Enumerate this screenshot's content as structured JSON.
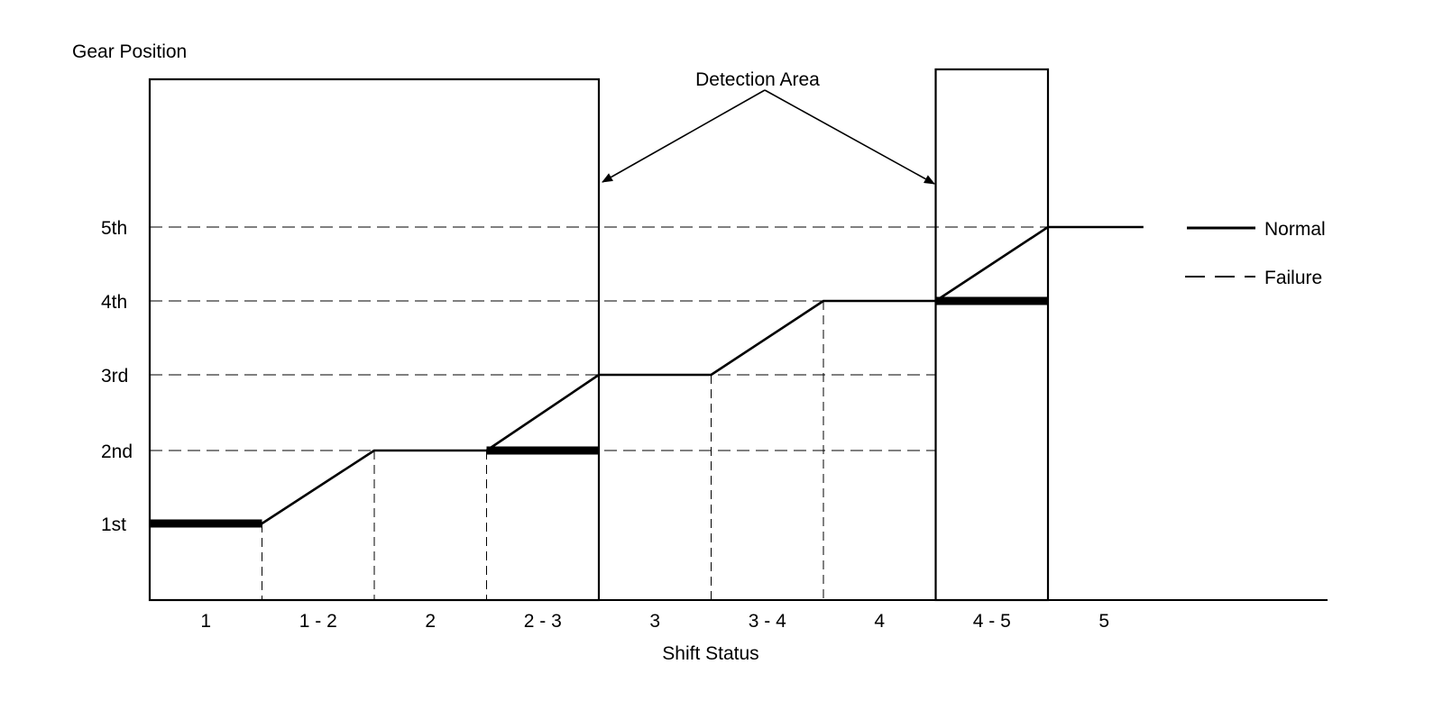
{
  "y_axis_title": "Gear Position",
  "x_axis_title": "Shift Status",
  "annotation": "Detection Area",
  "gears": [
    "1st",
    "2nd",
    "3rd",
    "4th",
    "5th"
  ],
  "shift_states": [
    "1",
    "1 - 2",
    "2",
    "2 - 3",
    "3",
    "3 - 4",
    "4",
    "4 - 5",
    "5"
  ],
  "legend": {
    "normal": "Normal",
    "failure": "Failure"
  },
  "chart_data": {
    "type": "line",
    "title": "",
    "xlabel": "Shift Status",
    "ylabel": "Gear Position",
    "categories": [
      "1",
      "1 - 2",
      "2",
      "2 - 3",
      "3",
      "3 - 4",
      "4",
      "4 - 5",
      "5"
    ],
    "y_ticks": [
      "1st",
      "2nd",
      "3rd",
      "4th",
      "5th"
    ],
    "series": [
      {
        "name": "Normal",
        "style": "solid",
        "points": [
          [
            0,
            1
          ],
          [
            1,
            1
          ],
          [
            2,
            2
          ],
          [
            3,
            2
          ],
          [
            4,
            3
          ],
          [
            5,
            3
          ],
          [
            6,
            4
          ],
          [
            7,
            4
          ],
          [
            8,
            5
          ],
          [
            8.85,
            5
          ]
        ]
      }
    ],
    "failure_holds": [
      {
        "from": 0,
        "to": 1,
        "gear": 1
      },
      {
        "from": 3,
        "to": 4,
        "gear": 2
      },
      {
        "from": 7,
        "to": 8,
        "gear": 4
      }
    ],
    "detection_areas": [
      {
        "from": 0,
        "to": 4
      },
      {
        "from": 7,
        "to": 8
      }
    ],
    "grid": "dashed reference lines",
    "legend_position": "right"
  }
}
